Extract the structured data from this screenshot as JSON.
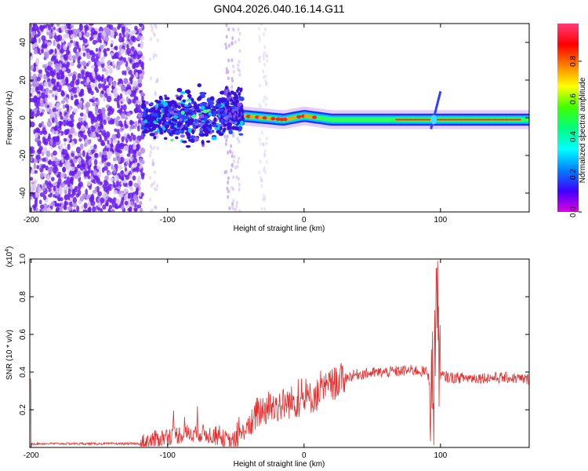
{
  "title": "GN04.2026.040.16.14.G11",
  "chart_data": [
    {
      "type": "heatmap",
      "title": "GN04.2026.040.16.14.G11",
      "xlabel": "Height of straight line (km)",
      "ylabel": "Frequency (Hz)",
      "xlim": [
        -201,
        165
      ],
      "ylim": [
        -50,
        50
      ],
      "xticks": [
        -200,
        -100,
        0,
        100
      ],
      "yticks": [
        -40,
        -20,
        0,
        20,
        40
      ],
      "colorbar": {
        "label": "Normalized spectral amplitude",
        "range": [
          0.0,
          1.0
        ],
        "ticks": [
          0.0,
          0.2,
          0.4,
          0.6,
          0.8
        ],
        "colormap": [
          "#e000e0",
          "#4000ff",
          "#0080ff",
          "#00ffff",
          "#00ff80",
          "#40ff00",
          "#ffff00",
          "#ff8000",
          "#ff0000",
          "#ff3c78"
        ]
      },
      "features": {
        "noise_region_km": [
          -200,
          -118
        ],
        "cluster_region_km": [
          -118,
          -45
        ],
        "carrier_doppler_hz": [
          [
            -118,
            0
          ],
          [
            -80,
            0
          ],
          [
            -45,
            1
          ],
          [
            -30,
            0
          ],
          [
            -15,
            -1
          ],
          [
            0,
            1
          ],
          [
            20,
            -1
          ],
          [
            60,
            -1
          ],
          [
            100,
            -1
          ],
          [
            165,
            -1
          ]
        ],
        "spike_at_km": 95
      }
    },
    {
      "type": "line",
      "xlabel": "Height of straight line (km)",
      "ylabel": "SNR (10 * v/v)",
      "ylabel_multiplier": "(x10",
      "ylabel_multiplier_exp": "4",
      "ylabel_multiplier_close": ")",
      "xlim": [
        -201,
        165
      ],
      "ylim": [
        0,
        1.0
      ],
      "xticks": [
        -200,
        -100,
        0,
        100
      ],
      "yticks": [
        0.2,
        0.4,
        0.6,
        0.8,
        1.0
      ],
      "series": [
        {
          "name": "SNR",
          "color": "#e03030",
          "x": [
            -200,
            -150,
            -120,
            -110,
            -100,
            -90,
            -80,
            -70,
            -60,
            -55,
            -50,
            -40,
            -35,
            -30,
            -20,
            -10,
            0,
            10,
            20,
            30,
            40,
            60,
            80,
            90,
            95,
            97,
            100,
            110,
            130,
            150,
            165
          ],
          "y": [
            0.02,
            0.02,
            0.02,
            0.04,
            0.06,
            0.07,
            0.08,
            0.07,
            0.05,
            0.03,
            0.04,
            0.12,
            0.18,
            0.2,
            0.22,
            0.24,
            0.25,
            0.28,
            0.33,
            0.37,
            0.39,
            0.4,
            0.41,
            0.4,
            0.28,
            0.9,
            0.38,
            0.37,
            0.37,
            0.37,
            0.36
          ]
        }
      ]
    }
  ]
}
